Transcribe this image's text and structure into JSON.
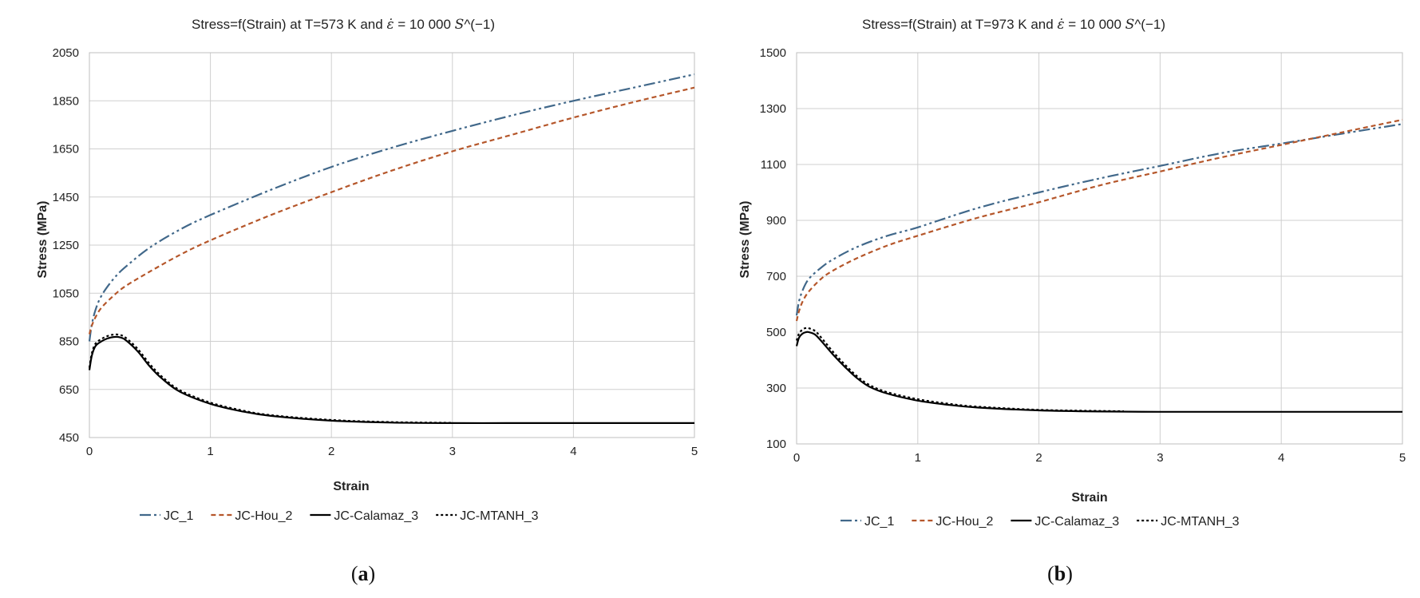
{
  "chart_data": [
    {
      "type": "line",
      "panel": "a",
      "caption_letter": "a",
      "title": "Stress=f(Strain) at T=573 K and ε̇ = 10 000 S^(−1)",
      "title_main": "Stress=f(Strain) at T=573 K and ",
      "title_eps": "ε̇",
      "title_rest": " = 10 000 ",
      "title_s": "S",
      "title_exp": "^(−1)",
      "xlabel": "Strain",
      "ylabel": "Stress (MPa)",
      "xlim": [
        0,
        5
      ],
      "ylim": [
        450,
        2050
      ],
      "xticks": [
        "0",
        "1",
        "2",
        "3",
        "4",
        "5"
      ],
      "yticks": [
        "450",
        "650",
        "850",
        "1050",
        "1250",
        "1450",
        "1650",
        "1850",
        "2050"
      ],
      "grid": true,
      "legend_position": "bottom",
      "series": [
        {
          "name": "JC_1",
          "color": "#41688a",
          "dash": "14,4,3,4,3,4",
          "x": [
            0,
            0.02,
            0.05,
            0.1,
            0.2,
            0.3,
            0.5,
            0.75,
            1,
            1.5,
            2,
            2.5,
            3,
            3.5,
            4,
            4.5,
            5
          ],
          "y": [
            850,
            920,
            980,
            1040,
            1110,
            1160,
            1240,
            1315,
            1375,
            1480,
            1575,
            1655,
            1725,
            1790,
            1850,
            1905,
            1960
          ]
        },
        {
          "name": "JC-Hou_2",
          "color": "#b5562a",
          "dash": "6,4",
          "x": [
            0,
            0.02,
            0.05,
            0.1,
            0.2,
            0.3,
            0.5,
            0.75,
            1,
            1.5,
            2,
            2.5,
            3,
            3.5,
            4,
            4.5,
            5
          ],
          "y": [
            880,
            915,
            950,
            990,
            1040,
            1080,
            1140,
            1210,
            1270,
            1375,
            1470,
            1560,
            1640,
            1710,
            1780,
            1845,
            1905
          ]
        },
        {
          "name": "JC-Calamaz_3",
          "color": "#000000",
          "dash": "",
          "x": [
            0,
            0.02,
            0.05,
            0.1,
            0.15,
            0.2,
            0.25,
            0.3,
            0.4,
            0.5,
            0.6,
            0.75,
            1,
            1.25,
            1.5,
            2,
            2.5,
            3,
            3.5,
            4,
            4.5,
            5
          ],
          "y": [
            730,
            790,
            830,
            850,
            862,
            868,
            867,
            855,
            808,
            745,
            695,
            640,
            590,
            560,
            540,
            520,
            512,
            510,
            510,
            510,
            510,
            510
          ]
        },
        {
          "name": "JC-MTANH_3",
          "color": "#000000",
          "dash": "3,3",
          "x": [
            0,
            0.02,
            0.05,
            0.1,
            0.15,
            0.2,
            0.25,
            0.3,
            0.4,
            0.5,
            0.6,
            0.75,
            1,
            1.25,
            1.5,
            2,
            2.5,
            3
          ],
          "y": [
            740,
            800,
            840,
            860,
            872,
            878,
            877,
            865,
            818,
            755,
            703,
            646,
            595,
            564,
            543,
            523,
            514,
            511
          ]
        }
      ]
    },
    {
      "type": "line",
      "panel": "b",
      "caption_letter": "b",
      "title": "Stress=f(Strain) at T=973 K and ε̇ = 10 000 S^(−1)",
      "title_main": "Stress=f(Strain) at T=973 K and ",
      "title_eps": "ε̇",
      "title_rest": " = 10 000 ",
      "title_s": "S",
      "title_exp": "^(−1)",
      "xlabel": "Strain",
      "ylabel": "Stress (MPa)",
      "xlim": [
        0,
        5
      ],
      "ylim": [
        100,
        1500
      ],
      "xticks": [
        "0",
        "1",
        "2",
        "3",
        "4",
        "5"
      ],
      "yticks": [
        "100",
        "300",
        "500",
        "700",
        "900",
        "1100",
        "1300",
        "1500"
      ],
      "grid": true,
      "legend_position": "bottom",
      "series": [
        {
          "name": "JC_1",
          "color": "#41688a",
          "dash": "14,4,3,4,3,4",
          "x": [
            0,
            0.02,
            0.05,
            0.1,
            0.2,
            0.3,
            0.5,
            0.75,
            1,
            1.5,
            2,
            2.5,
            3,
            3.5,
            4,
            4.5,
            5
          ],
          "y": [
            560,
            610,
            650,
            690,
            730,
            760,
            805,
            845,
            875,
            945,
            1000,
            1050,
            1095,
            1140,
            1175,
            1210,
            1245
          ]
        },
        {
          "name": "JC-Hou_2",
          "color": "#b5562a",
          "dash": "6,4",
          "x": [
            0,
            0.02,
            0.05,
            0.1,
            0.2,
            0.3,
            0.5,
            0.75,
            1,
            1.5,
            2,
            2.5,
            3,
            3.5,
            4,
            4.5,
            5
          ],
          "y": [
            540,
            575,
            610,
            645,
            690,
            720,
            765,
            810,
            845,
            910,
            965,
            1025,
            1075,
            1125,
            1170,
            1215,
            1260
          ]
        },
        {
          "name": "JC-Calamaz_3",
          "color": "#000000",
          "dash": "",
          "x": [
            0,
            0.02,
            0.05,
            0.08,
            0.1,
            0.15,
            0.2,
            0.3,
            0.4,
            0.5,
            0.6,
            0.75,
            1,
            1.25,
            1.5,
            2,
            2.5,
            3,
            3.5,
            4,
            4.5,
            5
          ],
          "y": [
            450,
            480,
            495,
            500,
            500,
            492,
            470,
            420,
            375,
            335,
            305,
            280,
            255,
            240,
            230,
            220,
            216,
            215,
            215,
            215,
            215,
            215
          ]
        },
        {
          "name": "JC-MTANH_3",
          "color": "#000000",
          "dash": "3,3",
          "x": [
            0,
            0.02,
            0.05,
            0.08,
            0.1,
            0.15,
            0.2,
            0.3,
            0.4,
            0.5,
            0.6,
            0.75,
            1,
            1.25,
            1.5,
            2,
            2.5,
            2.7
          ],
          "y": [
            470,
            495,
            510,
            515,
            514,
            505,
            482,
            430,
            383,
            342,
            311,
            285,
            260,
            244,
            233,
            222,
            218,
            217
          ]
        }
      ]
    }
  ]
}
